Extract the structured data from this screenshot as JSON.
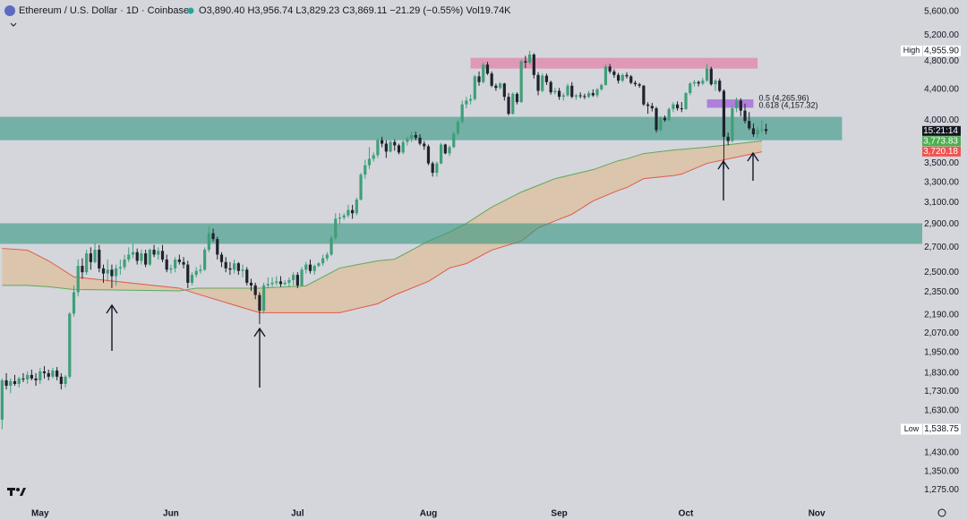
{
  "chart_data": {
    "type": "candlestick",
    "title": "Ethereum / U.S. Dollar · 1D · Coinbase",
    "status_items": [
      {
        "key": "O",
        "text": "3,890.40"
      },
      {
        "key": "H",
        "text": "3,956.74"
      },
      {
        "key": "L",
        "text": "3,829.23"
      },
      {
        "key": "C",
        "text": "3,869.11"
      }
    ],
    "change": "−21.29 (−0.55%)",
    "volume": {
      "key": "Vol",
      "text": "19.74K"
    },
    "up_color": "#3f9f78",
    "down_color": "#1e222d",
    "log_scale": true,
    "grid": false,
    "xlim": [
      -0.5,
      218
    ],
    "xticks": [
      {
        "value": 9,
        "label": "May"
      },
      {
        "value": 40,
        "label": "Jun"
      },
      {
        "value": 70,
        "label": "Jul"
      },
      {
        "value": 101,
        "label": "Aug"
      },
      {
        "value": 132,
        "label": "Sep"
      },
      {
        "value": 162,
        "label": "Oct"
      },
      {
        "value": 193,
        "label": "Nov"
      }
    ],
    "ylim": [
      1225,
      5800
    ],
    "yticks": [
      {
        "value": 5600,
        "label": "5,600.00"
      },
      {
        "value": 5200,
        "label": "5,200.00"
      },
      {
        "value": 4800,
        "label": "4,800.00"
      },
      {
        "value": 4400,
        "label": "4,400.00"
      },
      {
        "value": 4000,
        "label": "4,000.00"
      },
      {
        "value": 3500,
        "label": "3,500.00"
      },
      {
        "value": 3300,
        "label": "3,300.00"
      },
      {
        "value": 3100,
        "label": "3,100.00"
      },
      {
        "value": 2900,
        "label": "2,900.00"
      },
      {
        "value": 2700,
        "label": "2,700.00"
      },
      {
        "value": 2500,
        "label": "2,500.00"
      },
      {
        "value": 2350,
        "label": "2,350.00"
      },
      {
        "value": 2190,
        "label": "2,190.00"
      },
      {
        "value": 2070,
        "label": "2,070.00"
      },
      {
        "value": 1950,
        "label": "1,950.00"
      },
      {
        "value": 1830,
        "label": "1,830.00"
      },
      {
        "value": 1730,
        "label": "1,730.00"
      },
      {
        "value": 1630,
        "label": "1,630.00"
      },
      {
        "value": 1430,
        "label": "1,430.00"
      },
      {
        "value": 1350,
        "label": "1,350.00"
      },
      {
        "value": 1275,
        "label": "1,275.00"
      }
    ],
    "ohlc": [
      [
        1585,
        1800,
        1538.75,
        1790
      ],
      [
        1790,
        1830,
        1740,
        1760
      ],
      [
        1760,
        1800,
        1720,
        1785
      ],
      [
        1785,
        1820,
        1760,
        1770
      ],
      [
        1770,
        1810,
        1750,
        1800
      ],
      [
        1800,
        1830,
        1780,
        1795
      ],
      [
        1795,
        1840,
        1770,
        1820
      ],
      [
        1820,
        1850,
        1790,
        1800
      ],
      [
        1800,
        1830,
        1760,
        1790
      ],
      [
        1790,
        1860,
        1770,
        1840
      ],
      [
        1840,
        1870,
        1800,
        1830
      ],
      [
        1830,
        1850,
        1790,
        1810
      ],
      [
        1810,
        1860,
        1800,
        1845
      ],
      [
        1845,
        1865,
        1790,
        1810
      ],
      [
        1810,
        1830,
        1740,
        1770
      ],
      [
        1770,
        1820,
        1750,
        1810
      ],
      [
        1810,
        2210,
        1800,
        2200
      ],
      [
        2200,
        2400,
        2180,
        2350
      ],
      [
        2350,
        2600,
        2320,
        2550
      ],
      [
        2550,
        2610,
        2450,
        2500
      ],
      [
        2500,
        2680,
        2480,
        2650
      ],
      [
        2650,
        2700,
        2520,
        2580
      ],
      [
        2580,
        2740,
        2570,
        2680
      ],
      [
        2680,
        2720,
        2500,
        2530
      ],
      [
        2530,
        2560,
        2420,
        2490
      ],
      [
        2490,
        2600,
        2430,
        2520
      ],
      [
        2520,
        2560,
        2380,
        2470
      ],
      [
        2470,
        2560,
        2400,
        2530
      ],
      [
        2530,
        2600,
        2480,
        2540
      ],
      [
        2540,
        2640,
        2520,
        2600
      ],
      [
        2600,
        2700,
        2580,
        2640
      ],
      [
        2640,
        2730,
        2610,
        2660
      ],
      [
        2660,
        2690,
        2560,
        2590
      ],
      [
        2590,
        2680,
        2560,
        2650
      ],
      [
        2650,
        2680,
        2540,
        2560
      ],
      [
        2560,
        2690,
        2550,
        2680
      ],
      [
        2680,
        2720,
        2620,
        2640
      ],
      [
        2640,
        2700,
        2600,
        2670
      ],
      [
        2670,
        2720,
        2580,
        2600
      ],
      [
        2600,
        2640,
        2500,
        2520
      ],
      [
        2520,
        2560,
        2490,
        2530
      ],
      [
        2530,
        2620,
        2500,
        2600
      ],
      [
        2600,
        2640,
        2560,
        2580
      ],
      [
        2580,
        2620,
        2530,
        2560
      ],
      [
        2560,
        2590,
        2380,
        2420
      ],
      [
        2420,
        2500,
        2400,
        2480
      ],
      [
        2480,
        2540,
        2460,
        2510
      ],
      [
        2510,
        2560,
        2490,
        2520
      ],
      [
        2520,
        2700,
        2510,
        2680
      ],
      [
        2680,
        2880,
        2660,
        2820
      ],
      [
        2820,
        2860,
        2750,
        2770
      ],
      [
        2770,
        2790,
        2600,
        2640
      ],
      [
        2640,
        2660,
        2540,
        2580
      ],
      [
        2580,
        2620,
        2500,
        2530
      ],
      [
        2530,
        2580,
        2480,
        2520
      ],
      [
        2520,
        2600,
        2490,
        2570
      ],
      [
        2570,
        2580,
        2480,
        2510
      ],
      [
        2510,
        2560,
        2460,
        2520
      ],
      [
        2520,
        2540,
        2400,
        2420
      ],
      [
        2420,
        2450,
        2360,
        2400
      ],
      [
        2400,
        2420,
        2300,
        2330
      ],
      [
        2330,
        2350,
        2130,
        2220
      ],
      [
        2220,
        2420,
        2200,
        2400
      ],
      [
        2400,
        2460,
        2380,
        2410
      ],
      [
        2410,
        2460,
        2390,
        2420
      ],
      [
        2420,
        2470,
        2400,
        2430
      ],
      [
        2430,
        2470,
        2390,
        2410
      ],
      [
        2410,
        2440,
        2400,
        2420
      ],
      [
        2420,
        2460,
        2390,
        2440
      ],
      [
        2440,
        2500,
        2400,
        2480
      ],
      [
        2480,
        2500,
        2380,
        2400
      ],
      [
        2400,
        2540,
        2390,
        2520
      ],
      [
        2520,
        2580,
        2490,
        2560
      ],
      [
        2560,
        2600,
        2490,
        2510
      ],
      [
        2510,
        2560,
        2480,
        2550
      ],
      [
        2550,
        2580,
        2540,
        2570
      ],
      [
        2570,
        2640,
        2550,
        2610
      ],
      [
        2610,
        2660,
        2590,
        2640
      ],
      [
        2640,
        2800,
        2630,
        2780
      ],
      [
        2780,
        3000,
        2760,
        2950
      ],
      [
        2950,
        3000,
        2900,
        2960
      ],
      [
        2960,
        3000,
        2940,
        2980
      ],
      [
        2980,
        3080,
        2960,
        3030
      ],
      [
        3030,
        3080,
        2950,
        3000
      ],
      [
        3000,
        3150,
        2980,
        3130
      ],
      [
        3130,
        3400,
        3120,
        3380
      ],
      [
        3380,
        3540,
        3340,
        3480
      ],
      [
        3480,
        3680,
        3440,
        3550
      ],
      [
        3550,
        3620,
        3520,
        3590
      ],
      [
        3590,
        3780,
        3560,
        3760
      ],
      [
        3760,
        3800,
        3680,
        3720
      ],
      [
        3720,
        3760,
        3560,
        3630
      ],
      [
        3630,
        3760,
        3620,
        3740
      ],
      [
        3740,
        3770,
        3640,
        3700
      ],
      [
        3700,
        3720,
        3600,
        3620
      ],
      [
        3620,
        3760,
        3600,
        3740
      ],
      [
        3740,
        3800,
        3700,
        3780
      ],
      [
        3780,
        3860,
        3740,
        3820
      ],
      [
        3820,
        3860,
        3760,
        3790
      ],
      [
        3790,
        3830,
        3700,
        3720
      ],
      [
        3720,
        3750,
        3650,
        3690
      ],
      [
        3690,
        3710,
        3480,
        3500
      ],
      [
        3500,
        3520,
        3360,
        3400
      ],
      [
        3400,
        3520,
        3360,
        3500
      ],
      [
        3500,
        3730,
        3490,
        3710
      ],
      [
        3710,
        3720,
        3600,
        3610
      ],
      [
        3610,
        3700,
        3580,
        3680
      ],
      [
        3680,
        3860,
        3670,
        3840
      ],
      [
        3840,
        4000,
        3820,
        3980
      ],
      [
        3980,
        4250,
        3960,
        4200
      ],
      [
        4200,
        4300,
        4150,
        4250
      ],
      [
        4250,
        4330,
        4200,
        4270
      ],
      [
        4270,
        4600,
        4250,
        4580
      ],
      [
        4580,
        4650,
        4450,
        4500
      ],
      [
        4500,
        4780,
        4480,
        4750
      ],
      [
        4750,
        4790,
        4600,
        4620
      ],
      [
        4620,
        4650,
        4430,
        4450
      ],
      [
        4450,
        4480,
        4380,
        4420
      ],
      [
        4420,
        4500,
        4400,
        4480
      ],
      [
        4480,
        4490,
        4250,
        4300
      ],
      [
        4300,
        4350,
        4060,
        4080
      ],
      [
        4080,
        4360,
        4070,
        4340
      ],
      [
        4340,
        4360,
        4200,
        4230
      ],
      [
        4230,
        4820,
        4220,
        4800
      ],
      [
        4800,
        4880,
        4700,
        4780
      ],
      [
        4780,
        4955.9,
        4750,
        4900
      ],
      [
        4900,
        4920,
        4550,
        4600
      ],
      [
        4600,
        4640,
        4320,
        4380
      ],
      [
        4380,
        4620,
        4360,
        4590
      ],
      [
        4590,
        4620,
        4460,
        4500
      ],
      [
        4500,
        4520,
        4330,
        4360
      ],
      [
        4360,
        4420,
        4330,
        4380
      ],
      [
        4380,
        4420,
        4260,
        4300
      ],
      [
        4300,
        4350,
        4250,
        4320
      ],
      [
        4320,
        4480,
        4300,
        4450
      ],
      [
        4450,
        4500,
        4280,
        4300
      ],
      [
        4300,
        4340,
        4260,
        4320
      ],
      [
        4320,
        4360,
        4280,
        4310
      ],
      [
        4310,
        4340,
        4270,
        4300
      ],
      [
        4300,
        4380,
        4280,
        4350
      ],
      [
        4350,
        4400,
        4300,
        4320
      ],
      [
        4320,
        4420,
        4290,
        4400
      ],
      [
        4400,
        4480,
        4380,
        4460
      ],
      [
        4460,
        4750,
        4450,
        4720
      ],
      [
        4720,
        4760,
        4620,
        4650
      ],
      [
        4650,
        4680,
        4560,
        4600
      ],
      [
        4600,
        4630,
        4480,
        4520
      ],
      [
        4520,
        4620,
        4500,
        4600
      ],
      [
        4600,
        4640,
        4550,
        4580
      ],
      [
        4580,
        4600,
        4470,
        4490
      ],
      [
        4490,
        4520,
        4440,
        4470
      ],
      [
        4470,
        4490,
        4420,
        4450
      ],
      [
        4450,
        4460,
        4180,
        4200
      ],
      [
        4200,
        4230,
        4080,
        4180
      ],
      [
        4180,
        4220,
        4110,
        4150
      ],
      [
        4150,
        4170,
        3850,
        3880
      ],
      [
        3880,
        4050,
        3860,
        4030
      ],
      [
        4030,
        4060,
        3980,
        4000
      ],
      [
        4000,
        4160,
        3990,
        4140
      ],
      [
        4140,
        4230,
        4100,
        4200
      ],
      [
        4200,
        4240,
        4120,
        4150
      ],
      [
        4150,
        4230,
        4100,
        4140
      ],
      [
        4140,
        4360,
        4130,
        4350
      ],
      [
        4350,
        4500,
        4320,
        4480
      ],
      [
        4480,
        4530,
        4440,
        4500
      ],
      [
        4500,
        4520,
        4440,
        4480
      ],
      [
        4480,
        4560,
        4460,
        4520
      ],
      [
        4520,
        4760,
        4500,
        4690
      ],
      [
        4690,
        4720,
        4450,
        4470
      ],
      [
        4470,
        4540,
        4380,
        4520
      ],
      [
        4520,
        4550,
        4360,
        4380
      ],
      [
        4380,
        4400,
        3440,
        3800
      ],
      [
        3800,
        3850,
        3700,
        3750
      ],
      [
        3750,
        4180,
        3740,
        4150
      ],
      [
        4150,
        4290,
        4100,
        4250
      ],
      [
        4250,
        4280,
        4050,
        4120
      ],
      [
        4120,
        4210,
        3960,
        3990
      ],
      [
        3990,
        4100,
        3880,
        3900
      ],
      [
        3900,
        3960,
        3800,
        3830
      ],
      [
        3830,
        3920,
        3790,
        3880
      ],
      [
        3880,
        4000,
        3850,
        3890
      ],
      [
        3890.4,
        3956.74,
        3829.23,
        3869.11
      ]
    ],
    "cloud": {
      "x": [
        0,
        6,
        11,
        17,
        42,
        46,
        61,
        72,
        80,
        89,
        93,
        101,
        106,
        110,
        116,
        123,
        127,
        131,
        135,
        140,
        146,
        148,
        152,
        159,
        161,
        167,
        180
      ],
      "fill": "rgba(232,170,95,0.38)",
      "span_a": {
        "color": "#5fa85a",
        "values": [
          2400,
          2400,
          2390,
          2370,
          2360,
          2380,
          2380,
          2397,
          2533,
          2590,
          2603,
          2752,
          2830,
          2908,
          3057,
          3203,
          3270,
          3339,
          3380,
          3433,
          3529,
          3550,
          3608,
          3648,
          3655,
          3680,
          3751
        ]
      },
      "span_b": {
        "color": "#e0584a",
        "values": [
          2691,
          2677,
          2590,
          2464,
          2380,
          2340,
          2206,
          2206,
          2206,
          2268,
          2330,
          2430,
          2533,
          2568,
          2677,
          2752,
          2868,
          2930,
          2990,
          3116,
          3220,
          3248,
          3339,
          3370,
          3386,
          3500,
          3628
        ]
      }
    },
    "zones": [
      {
        "ylim": [
          3760,
          4042
        ],
        "xrange": [
          -0.5,
          199
        ],
        "color": "rgba(52,150,128,0.6)"
      },
      {
        "ylim": [
          2729,
          2908
        ],
        "xrange": [
          -0.5,
          218
        ],
        "color": "rgba(52,150,128,0.6)"
      },
      {
        "ylim": [
          4692,
          4850
        ],
        "xrange": [
          111,
          179
        ],
        "color": "rgba(230,110,155,0.6)"
      },
      {
        "ylim": [
          4157.32,
          4265.96
        ],
        "xrange": [
          167,
          178
        ],
        "color": "rgba(160,90,215,0.7)",
        "labels": [
          "0.5 (4,265.96)",
          "0.618 (4,157.32)"
        ]
      }
    ],
    "price_tags": [
      {
        "label": "15:21:14",
        "value": 3869.11,
        "color": "#131722"
      },
      {
        "label": "3,773.83",
        "value": 3773.83,
        "color": "#4caf50"
      },
      {
        "label": "3,720.18",
        "value": 3720.18,
        "color": "#ef5350"
      }
    ],
    "extremes": [
      {
        "key": "High",
        "label": "4,955.90",
        "value": 4955.9
      },
      {
        "key": "Low",
        "label": "1,538.75",
        "value": 1538.75
      }
    ]
  }
}
